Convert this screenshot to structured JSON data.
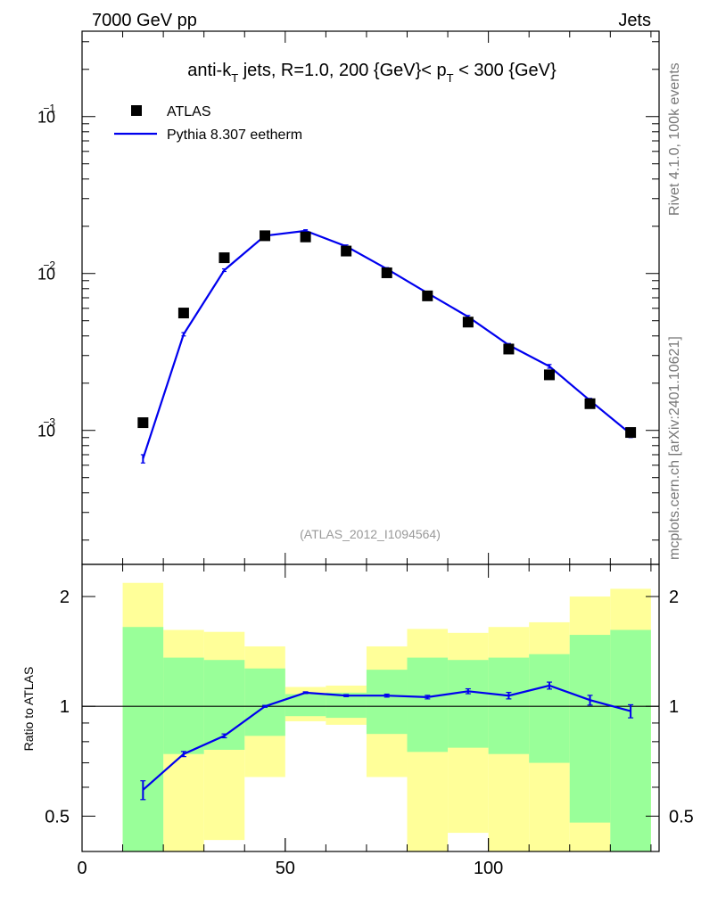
{
  "header": {
    "left": "7000 GeV pp",
    "right": "Jets"
  },
  "side_labels": {
    "rivet": "Rivet 4.1.0,  100k events",
    "site": "mcplots.cern.ch [arXiv:2401.10621]"
  },
  "colors": {
    "data": "#000000",
    "mc": "#0000ee",
    "band_inner": "#99ff99",
    "band_outer": "#ffff99"
  },
  "chart_data": [
    {
      "type": "scatter",
      "name": "main",
      "yscale": "log",
      "xlim": [
        0,
        142
      ],
      "ylim": [
        0.00014,
        0.35
      ],
      "title": "anti-kT jets, R=1.0, 200 {GeV}< pT < 300 {GeV}",
      "title_parts": {
        "a": "anti-k",
        "a_sub": "T",
        "b": " jets, R=1.0, 200 {GeV}< p",
        "b_sub": "T",
        "c": " < 300 {GeV}"
      },
      "yticks": [
        {
          "value": 0.1,
          "base": "10",
          "exp": "−1"
        },
        {
          "value": 0.01,
          "base": "10",
          "exp": "−2"
        },
        {
          "value": 0.001,
          "base": "10",
          "exp": "−3"
        }
      ],
      "reference": "(ATLAS_2012_I1094564)",
      "legend": {
        "data": "ATLAS",
        "mc": "Pythia 8.307 eetherm",
        "position": "top-left"
      },
      "series": [
        {
          "name": "ATLAS",
          "x": [
            15,
            25,
            35,
            45,
            55,
            65,
            75,
            85,
            95,
            105,
            115,
            125,
            135
          ],
          "y": [
            0.00112,
            0.0056,
            0.0126,
            0.0174,
            0.0171,
            0.0139,
            0.0101,
            0.0072,
            0.0049,
            0.0033,
            0.00226,
            0.00148,
            0.00097
          ]
        },
        {
          "name": "Pythia 8.307 eetherm",
          "x": [
            15,
            25,
            35,
            45,
            55,
            65,
            75,
            85,
            95,
            105,
            115,
            125,
            135
          ],
          "y": [
            0.00066,
            0.0041,
            0.0105,
            0.0174,
            0.0187,
            0.0149,
            0.0107,
            0.0075,
            0.0053,
            0.0035,
            0.00256,
            0.00155,
            0.00095
          ],
          "err": [
            4e-05,
            0.0001,
            0.0002,
            0.0003,
            0.0003,
            0.0003,
            0.0002,
            0.00015,
            0.0001,
            8e-05,
            7e-05,
            5e-05,
            5e-05
          ]
        }
      ]
    },
    {
      "type": "line",
      "name": "ratio",
      "yscale": "log",
      "xlim": [
        0,
        142
      ],
      "ylim": [
        0.4,
        2.45
      ],
      "ylabel": "Ratio to ATLAS",
      "yticks": [
        {
          "value": 0.5,
          "label": "0.5"
        },
        {
          "value": 1,
          "label": "1"
        },
        {
          "value": 2,
          "label": "2"
        }
      ],
      "xticks": [
        {
          "value": 0,
          "label": "0"
        },
        {
          "value": 50,
          "label": "50"
        },
        {
          "value": 100,
          "label": "100"
        }
      ],
      "bins": [
        {
          "lo": 10,
          "hi": 20,
          "inner": [
            0.4,
            1.65
          ],
          "outer": [
            0.4,
            2.18
          ]
        },
        {
          "lo": 20,
          "hi": 30,
          "inner": [
            0.74,
            1.36
          ],
          "outer": [
            0.36,
            1.62
          ]
        },
        {
          "lo": 30,
          "hi": 40,
          "inner": [
            0.76,
            1.34
          ],
          "outer": [
            0.43,
            1.6
          ]
        },
        {
          "lo": 40,
          "hi": 50,
          "inner": [
            0.83,
            1.27
          ],
          "outer": [
            0.64,
            1.46
          ]
        },
        {
          "lo": 50,
          "hi": 60,
          "inner": [
            0.94,
            1.08
          ],
          "outer": [
            0.91,
            1.13
          ]
        },
        {
          "lo": 60,
          "hi": 70,
          "inner": [
            0.93,
            1.09
          ],
          "outer": [
            0.89,
            1.14
          ]
        },
        {
          "lo": 70,
          "hi": 80,
          "inner": [
            0.84,
            1.26
          ],
          "outer": [
            0.64,
            1.46
          ]
        },
        {
          "lo": 80,
          "hi": 90,
          "inner": [
            0.75,
            1.36
          ],
          "outer": [
            0.38,
            1.63
          ]
        },
        {
          "lo": 90,
          "hi": 100,
          "inner": [
            0.77,
            1.34
          ],
          "outer": [
            0.45,
            1.59
          ]
        },
        {
          "lo": 100,
          "hi": 110,
          "inner": [
            0.74,
            1.36
          ],
          "outer": [
            0.37,
            1.65
          ]
        },
        {
          "lo": 110,
          "hi": 120,
          "inner": [
            0.7,
            1.39
          ],
          "outer": [
            0.35,
            1.7
          ]
        },
        {
          "lo": 120,
          "hi": 130,
          "inner": [
            0.48,
            1.57
          ],
          "outer": [
            0.35,
            2.0
          ]
        },
        {
          "lo": 130,
          "hi": 140,
          "inner": [
            0.4,
            1.62
          ],
          "outer": [
            0.4,
            2.1
          ]
        }
      ],
      "series": [
        {
          "name": "Pythia 8.307 eetherm / ATLAS",
          "x": [
            15,
            25,
            35,
            45,
            55,
            65,
            75,
            85,
            95,
            105,
            115,
            125,
            135
          ],
          "y": [
            0.59,
            0.74,
            0.83,
            1.0,
            1.09,
            1.07,
            1.07,
            1.06,
            1.1,
            1.07,
            1.14,
            1.04,
            0.97
          ],
          "err": [
            0.035,
            0.012,
            0.01,
            0.006,
            0.006,
            0.007,
            0.01,
            0.012,
            0.017,
            0.022,
            0.025,
            0.032,
            0.04
          ]
        }
      ]
    }
  ]
}
